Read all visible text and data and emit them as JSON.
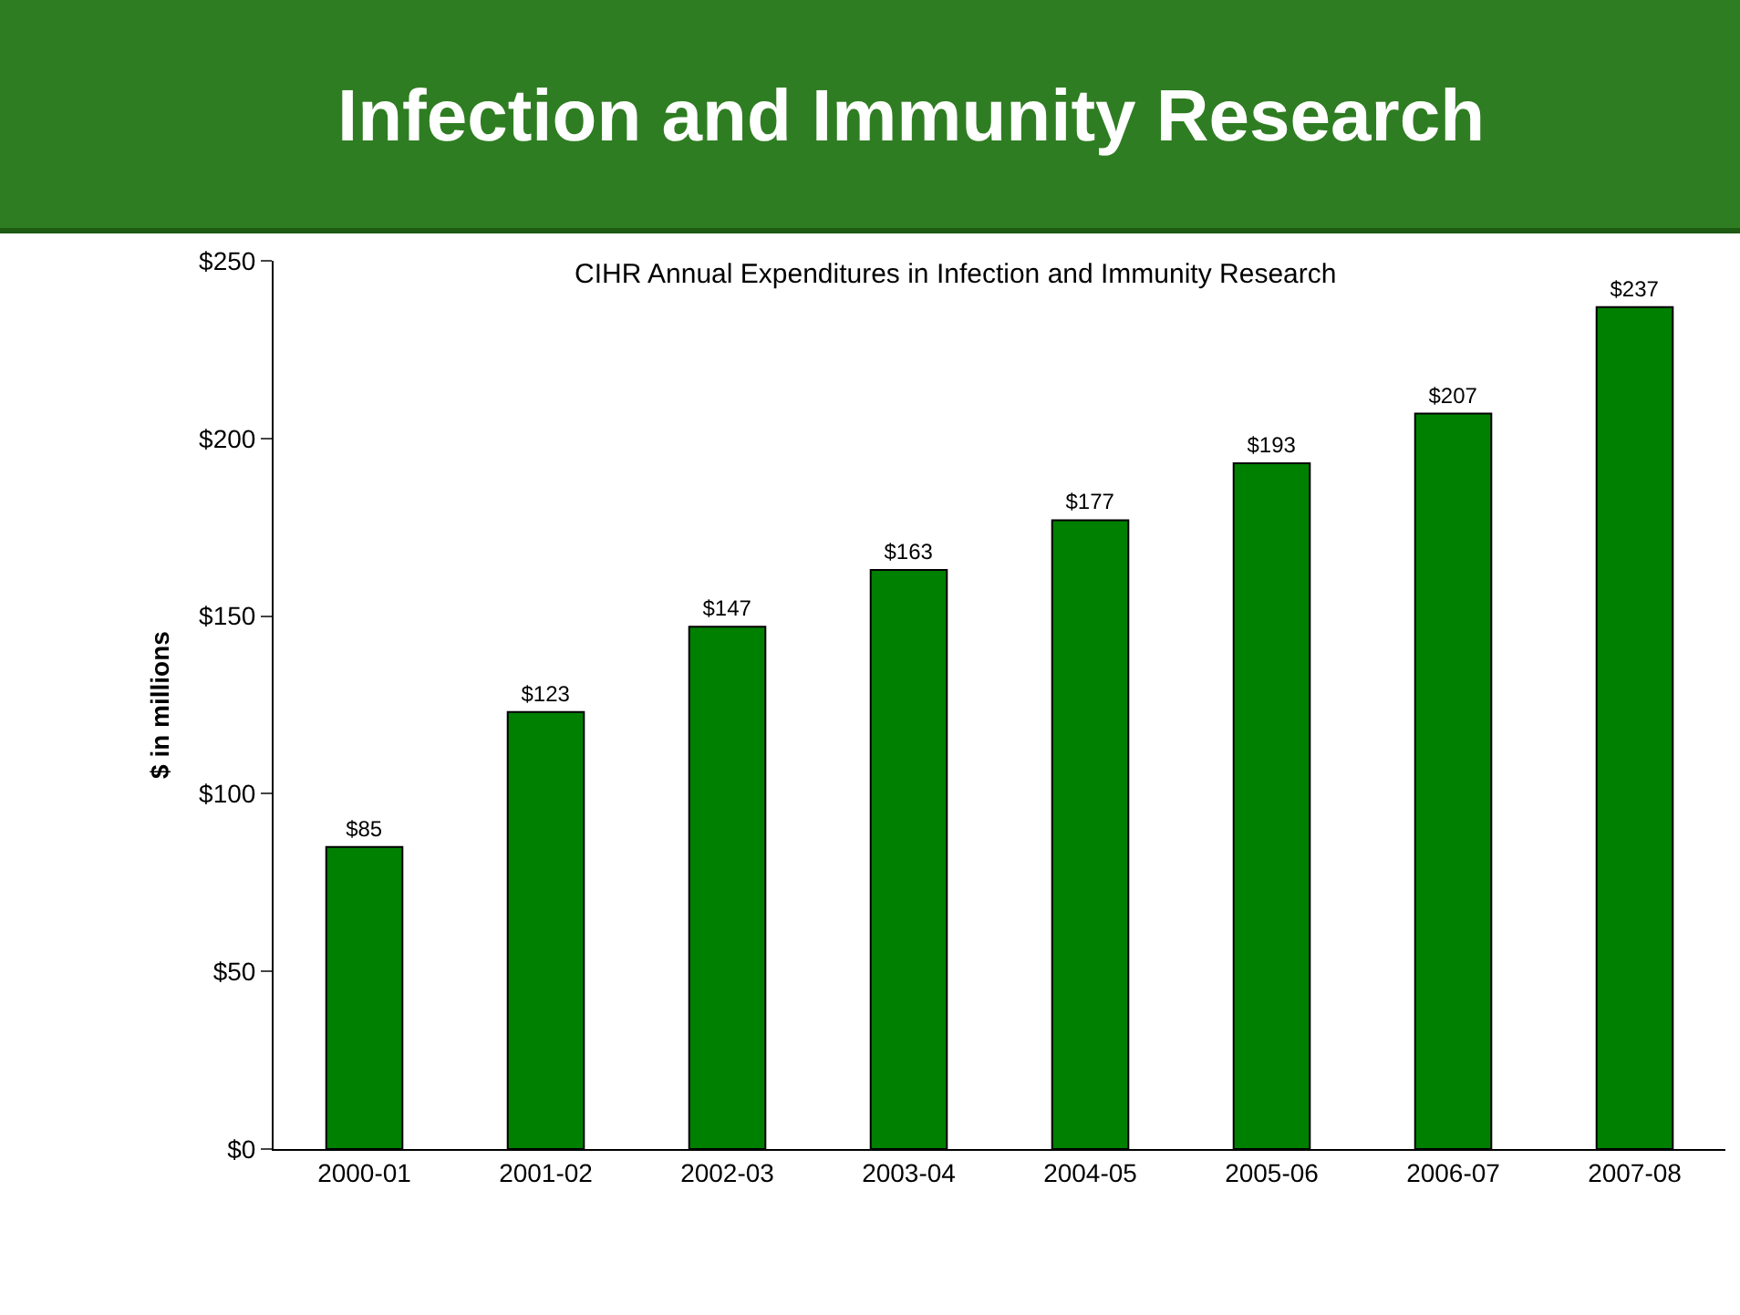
{
  "chart_data": {
    "type": "bar",
    "title": "Infection and Immunity Research",
    "subtitle": "CIHR Annual Expenditures in Infection and Immunity Research",
    "ylabel": "$ in millions",
    "categories": [
      "2000-01",
      "2001-02",
      "2002-03",
      "2003-04",
      "2004-05",
      "2005-06",
      "2006-07",
      "2007-08"
    ],
    "values": [
      85,
      123,
      147,
      163,
      177,
      193,
      207,
      237
    ],
    "value_labels": [
      "$85",
      "$123",
      "$147",
      "$163",
      "$177",
      "$193",
      "$207",
      "$237"
    ],
    "color": "#008000",
    "ylim": [
      0,
      250
    ],
    "yticks": [
      {
        "value": 0,
        "label": "$0"
      },
      {
        "value": 50,
        "label": "$50"
      },
      {
        "value": 100,
        "label": "$100"
      },
      {
        "value": 150,
        "label": "$150"
      },
      {
        "value": 200,
        "label": "$200"
      },
      {
        "value": 250,
        "label": "$250"
      }
    ],
    "grid": false,
    "legend": false
  }
}
